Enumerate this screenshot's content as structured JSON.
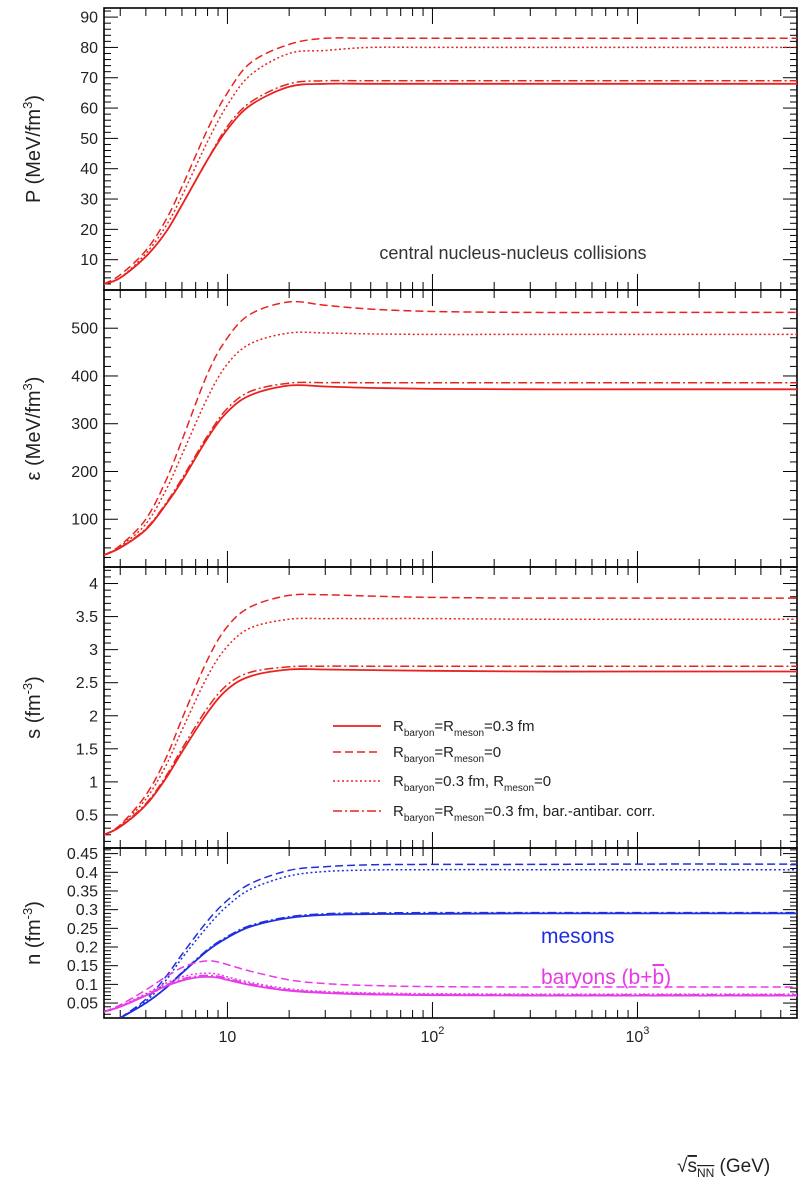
{
  "chart_data": {
    "type": "line",
    "shared_xaxis": {
      "label_main": "√s",
      "label_sub": "NN",
      "label_unit": " (GeV)",
      "scale": "log",
      "xlim": [
        2.5,
        6000
      ],
      "tick_labels": [
        {
          "value": 10,
          "base": "10",
          "exp": ""
        },
        {
          "value": 100,
          "base": "10",
          "exp": "2"
        },
        {
          "value": 1000,
          "base": "10",
          "exp": "3"
        }
      ]
    },
    "line_styles": {
      "R_both_03": "solid",
      "R_both_0": "dashed",
      "R_baryon_03_meson_0": "dotted",
      "R_both_03_corr": "dashdot"
    },
    "legend": {
      "panel": 2,
      "placement": "lower-right",
      "entries": [
        {
          "style": "solid",
          "parts": [
            "R",
            "baryon",
            "=R",
            "meson",
            "=0.3 fm"
          ]
        },
        {
          "style": "dashed",
          "parts": [
            "R",
            "baryon",
            "=R",
            "meson",
            "=0"
          ]
        },
        {
          "style": "dotted",
          "parts": [
            "R",
            "baryon",
            "=0.3 fm, R",
            "meson",
            "=0"
          ]
        },
        {
          "style": "dashdot",
          "parts": [
            "R",
            "baryon",
            "=R",
            "meson",
            "=0.3 fm, bar.-antibar. corr."
          ]
        }
      ]
    },
    "panels": [
      {
        "id": "pressure",
        "ylabel_parts": [
          "P (MeV/fm",
          "3",
          ")"
        ],
        "ylim": [
          0,
          93
        ],
        "yticks": [
          10,
          20,
          30,
          40,
          50,
          60,
          70,
          80,
          90
        ],
        "ytick_labels": [
          "10",
          "20",
          "30",
          "40",
          "50",
          "60",
          "70",
          "80",
          "90"
        ],
        "annotations": [
          {
            "text": "central nucleus-nucleus collisions",
            "color": "#333333"
          }
        ],
        "series": [
          {
            "key": "R_both_03",
            "color": "#e8231f",
            "x": [
              2.5,
              3,
              4,
              5,
              6,
              8,
              10,
              13,
              20,
              30,
              50,
              100,
              300,
              1000,
              6000
            ],
            "y": [
              2,
              4,
              11,
              19,
              28,
              43,
              53,
              61,
              67,
              68,
              68,
              68,
              68,
              68,
              68
            ]
          },
          {
            "key": "R_both_0",
            "color": "#e8231f",
            "x": [
              2.5,
              3,
              4,
              5,
              6,
              8,
              10,
              13,
              20,
              30,
              50,
              100,
              300,
              1000,
              6000
            ],
            "y": [
              2,
              5,
              13,
              23,
              34,
              53,
              65,
              75,
              81,
              83,
              83,
              83,
              83,
              83,
              83
            ]
          },
          {
            "key": "R_baryon_03_meson_0",
            "color": "#e8231f",
            "x": [
              2.5,
              3,
              4,
              5,
              6,
              8,
              10,
              13,
              20,
              30,
              50,
              100,
              300,
              1000,
              6000
            ],
            "y": [
              2,
              4,
              12,
              21,
              31,
              49,
              61,
              71,
              78,
              79,
              80,
              80,
              80,
              80,
              80
            ]
          },
          {
            "key": "R_both_03_corr",
            "color": "#e8231f",
            "x": [
              2.5,
              3,
              4,
              5,
              6,
              8,
              10,
              13,
              20,
              30,
              50,
              100,
              300,
              1000,
              6000
            ],
            "y": [
              2,
              4,
              11,
              19,
              28,
              43,
              54,
              62,
              68,
              69,
              69,
              69,
              69,
              69,
              69
            ]
          }
        ]
      },
      {
        "id": "energy-density",
        "ylabel_parts": [
          "ε (MeV/fm",
          "3",
          ")"
        ],
        "ylim": [
          0,
          580
        ],
        "yticks": [
          100,
          200,
          300,
          400,
          500
        ],
        "ytick_labels": [
          "100",
          "200",
          "300",
          "400",
          "500"
        ],
        "annotations": [],
        "series": [
          {
            "key": "R_both_03",
            "color": "#e8231f",
            "x": [
              2.5,
              3,
              4,
              5,
              6,
              8,
              10,
              13,
              20,
              30,
              50,
              100,
              300,
              1000,
              6000
            ],
            "y": [
              25,
              40,
              78,
              130,
              180,
              270,
              325,
              360,
              380,
              378,
              375,
              373,
              372,
              372,
              372
            ]
          },
          {
            "key": "R_both_0",
            "color": "#e8231f",
            "x": [
              2.5,
              3,
              4,
              5,
              6,
              8,
              10,
              13,
              20,
              30,
              50,
              100,
              300,
              1000,
              6000
            ],
            "y": [
              25,
              45,
              100,
              180,
              265,
              405,
              480,
              530,
              555,
              548,
              540,
              535,
              533,
              533,
              533
            ]
          },
          {
            "key": "R_baryon_03_meson_0",
            "color": "#e8231f",
            "x": [
              2.5,
              3,
              4,
              5,
              6,
              8,
              10,
              13,
              20,
              30,
              50,
              100,
              300,
              1000,
              6000
            ],
            "y": [
              25,
              43,
              90,
              160,
              235,
              355,
              425,
              468,
              490,
              490,
              488,
              487,
              487,
              487,
              487
            ]
          },
          {
            "key": "R_both_03_corr",
            "color": "#e8231f",
            "x": [
              2.5,
              3,
              4,
              5,
              6,
              8,
              10,
              13,
              20,
              30,
              50,
              100,
              300,
              1000,
              6000
            ],
            "y": [
              25,
              41,
              80,
              133,
              185,
              275,
              332,
              368,
              385,
              386,
              386,
              386,
              386,
              386,
              386
            ]
          }
        ]
      },
      {
        "id": "entropy-density",
        "ylabel_parts": [
          "s (fm",
          "-3",
          ")"
        ],
        "ylim": [
          0,
          4.25
        ],
        "yticks": [
          0.5,
          1,
          1.5,
          2,
          2.5,
          3,
          3.5,
          4
        ],
        "ytick_labels": [
          "0.5",
          "1",
          "1.5",
          "2",
          "2.5",
          "3",
          "3.5",
          "4"
        ],
        "annotations": [],
        "series": [
          {
            "key": "R_both_03",
            "color": "#e8231f",
            "x": [
              2.5,
              3,
              4,
              5,
              6,
              8,
              10,
              13,
              20,
              30,
              50,
              100,
              300,
              1000,
              6000
            ],
            "y": [
              0.2,
              0.32,
              0.65,
              1.05,
              1.45,
              2.05,
              2.4,
              2.6,
              2.7,
              2.7,
              2.69,
              2.68,
              2.67,
              2.67,
              2.67
            ]
          },
          {
            "key": "R_both_0",
            "color": "#e8231f",
            "x": [
              2.5,
              3,
              4,
              5,
              6,
              8,
              10,
              13,
              20,
              30,
              50,
              100,
              300,
              1000,
              6000
            ],
            "y": [
              0.2,
              0.35,
              0.8,
              1.35,
              1.95,
              2.85,
              3.35,
              3.65,
              3.82,
              3.83,
              3.81,
              3.79,
              3.78,
              3.78,
              3.78
            ]
          },
          {
            "key": "R_baryon_03_meson_0",
            "color": "#e8231f",
            "x": [
              2.5,
              3,
              4,
              5,
              6,
              8,
              10,
              13,
              20,
              30,
              50,
              100,
              300,
              1000,
              6000
            ],
            "y": [
              0.2,
              0.34,
              0.74,
              1.24,
              1.78,
              2.6,
              3.05,
              3.33,
              3.46,
              3.47,
              3.47,
              3.47,
              3.46,
              3.46,
              3.46
            ]
          },
          {
            "key": "R_both_03_corr",
            "color": "#e8231f",
            "x": [
              2.5,
              3,
              4,
              5,
              6,
              8,
              10,
              13,
              20,
              30,
              50,
              100,
              300,
              1000,
              6000
            ],
            "y": [
              0.2,
              0.33,
              0.67,
              1.08,
              1.5,
              2.12,
              2.47,
              2.66,
              2.74,
              2.75,
              2.75,
              2.75,
              2.75,
              2.75,
              2.75
            ]
          }
        ]
      },
      {
        "id": "number-density",
        "ylabel_parts": [
          "n (fm",
          "-3",
          ")"
        ],
        "ylim": [
          0.01,
          0.465
        ],
        "yticks": [
          0.05,
          0.1,
          0.15,
          0.2,
          0.25,
          0.3,
          0.35,
          0.4,
          0.45
        ],
        "ytick_labels": [
          "0.05",
          "0.1",
          "0.15",
          "0.2",
          "0.25",
          "0.3",
          "0.35",
          "0.4",
          "0.45"
        ],
        "annotations": [
          {
            "text": "mesons",
            "color": "#1f2fe0"
          },
          {
            "text": "baryons (b+",
            "bar_char": "b",
            "close": ")",
            "color": "#e83ae8"
          }
        ],
        "series": [
          {
            "group": "mesons",
            "key": "R_both_03",
            "color": "#1f2fe0",
            "x": [
              3,
              4,
              5,
              6,
              8,
              10,
              13,
              20,
              30,
              50,
              100,
              300,
              1000,
              6000
            ],
            "y": [
              0.01,
              0.05,
              0.09,
              0.13,
              0.19,
              0.225,
              0.255,
              0.278,
              0.286,
              0.288,
              0.289,
              0.29,
              0.29,
              0.29
            ]
          },
          {
            "group": "mesons",
            "key": "R_both_0",
            "color": "#1f2fe0",
            "x": [
              3,
              4,
              5,
              6,
              8,
              10,
              13,
              20,
              30,
              50,
              100,
              300,
              1000,
              6000
            ],
            "y": [
              0.01,
              0.06,
              0.12,
              0.18,
              0.27,
              0.325,
              0.37,
              0.405,
              0.415,
              0.42,
              0.421,
              0.421,
              0.422,
              0.422
            ]
          },
          {
            "group": "mesons",
            "key": "R_baryon_03_meson_0",
            "color": "#1f2fe0",
            "x": [
              3,
              4,
              5,
              6,
              8,
              10,
              13,
              20,
              30,
              50,
              100,
              300,
              1000,
              6000
            ],
            "y": [
              0.01,
              0.055,
              0.11,
              0.17,
              0.255,
              0.31,
              0.355,
              0.39,
              0.402,
              0.406,
              0.407,
              0.407,
              0.407,
              0.407
            ]
          },
          {
            "group": "mesons",
            "key": "R_both_03_corr",
            "color": "#1f2fe0",
            "x": [
              3,
              4,
              5,
              6,
              8,
              10,
              13,
              20,
              30,
              50,
              100,
              300,
              1000,
              6000
            ],
            "y": [
              0.01,
              0.05,
              0.09,
              0.132,
              0.193,
              0.228,
              0.258,
              0.281,
              0.289,
              0.291,
              0.292,
              0.292,
              0.292,
              0.292
            ]
          },
          {
            "group": "baryons",
            "key": "R_both_03",
            "color": "#e83ae8",
            "x": [
              2.5,
              3,
              4,
              5,
              6,
              7,
              8,
              9,
              10,
              13,
              20,
              30,
              50,
              100,
              300,
              1000,
              6000
            ],
            "y": [
              0.027,
              0.04,
              0.07,
              0.095,
              0.11,
              0.118,
              0.12,
              0.118,
              0.112,
              0.098,
              0.083,
              0.077,
              0.073,
              0.071,
              0.07,
              0.07,
              0.07
            ]
          },
          {
            "group": "baryons",
            "key": "R_both_0",
            "color": "#e83ae8",
            "x": [
              2.5,
              3,
              4,
              5,
              6,
              7,
              8,
              9,
              10,
              13,
              20,
              30,
              50,
              100,
              300,
              1000,
              6000
            ],
            "y": [
              0.027,
              0.045,
              0.085,
              0.12,
              0.145,
              0.158,
              0.163,
              0.16,
              0.153,
              0.135,
              0.112,
              0.102,
              0.097,
              0.094,
              0.093,
              0.093,
              0.093
            ]
          },
          {
            "group": "baryons",
            "key": "R_baryon_03_meson_0",
            "color": "#e83ae8",
            "x": [
              2.5,
              3,
              4,
              5,
              6,
              7,
              8,
              9,
              10,
              13,
              20,
              30,
              50,
              100,
              300,
              1000,
              6000
            ],
            "y": [
              0.027,
              0.042,
              0.075,
              0.103,
              0.12,
              0.128,
              0.13,
              0.127,
              0.12,
              0.105,
              0.088,
              0.081,
              0.077,
              0.075,
              0.074,
              0.074,
              0.074
            ]
          },
          {
            "group": "baryons",
            "key": "R_both_03_corr",
            "color": "#e83ae8",
            "x": [
              2.5,
              3,
              4,
              5,
              6,
              7,
              8,
              9,
              10,
              13,
              20,
              30,
              50,
              100,
              300,
              1000,
              6000
            ],
            "y": [
              0.027,
              0.041,
              0.072,
              0.098,
              0.114,
              0.122,
              0.124,
              0.122,
              0.116,
              0.101,
              0.085,
              0.079,
              0.075,
              0.073,
              0.072,
              0.072,
              0.072
            ]
          }
        ]
      }
    ]
  }
}
